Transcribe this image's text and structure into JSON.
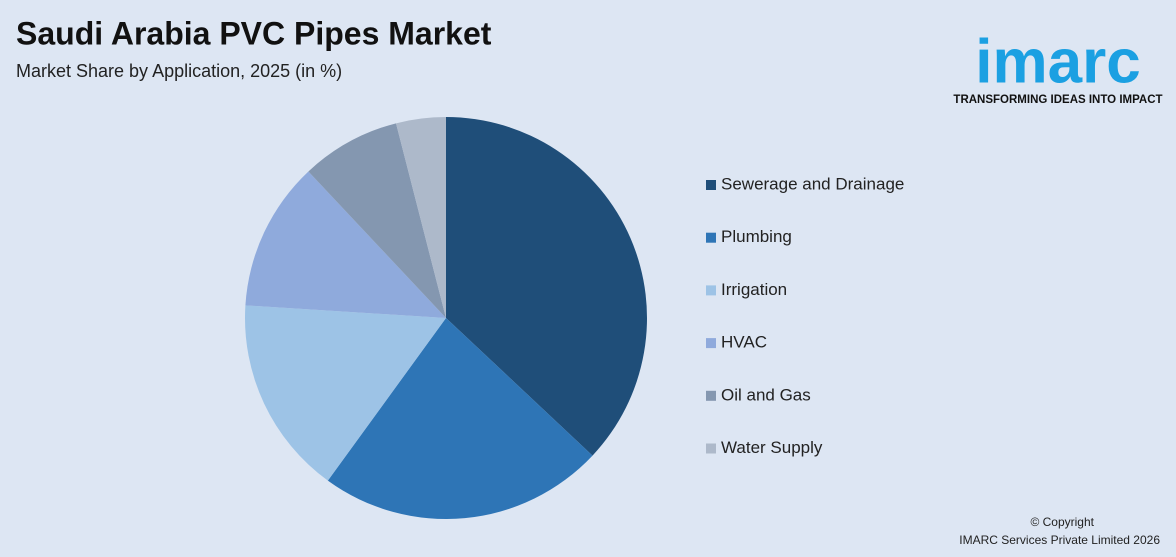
{
  "chart_data": {
    "type": "pie",
    "title": "Saudi Arabia PVC Pipes Market",
    "subtitle": "Market Share by Application, 2025 (in %)",
    "categories": [
      "Sewerage and Drainage",
      "Plumbing",
      "Irrigation",
      "HVAC",
      "Oil and Gas",
      "Water Supply"
    ],
    "values": [
      37,
      23,
      16,
      12,
      8,
      4
    ],
    "colors": [
      "#1f4e79",
      "#2e75b6",
      "#9dc3e6",
      "#8faadc",
      "#8497b0",
      "#adb9ca"
    ],
    "legend": "right"
  },
  "logo": {
    "name": "imarc",
    "tagline": "TRANSFORMING IDEAS INTO IMPACT"
  },
  "footer": {
    "copyright": "© Copyright",
    "company": "IMARC Services Private Limited 2026"
  }
}
